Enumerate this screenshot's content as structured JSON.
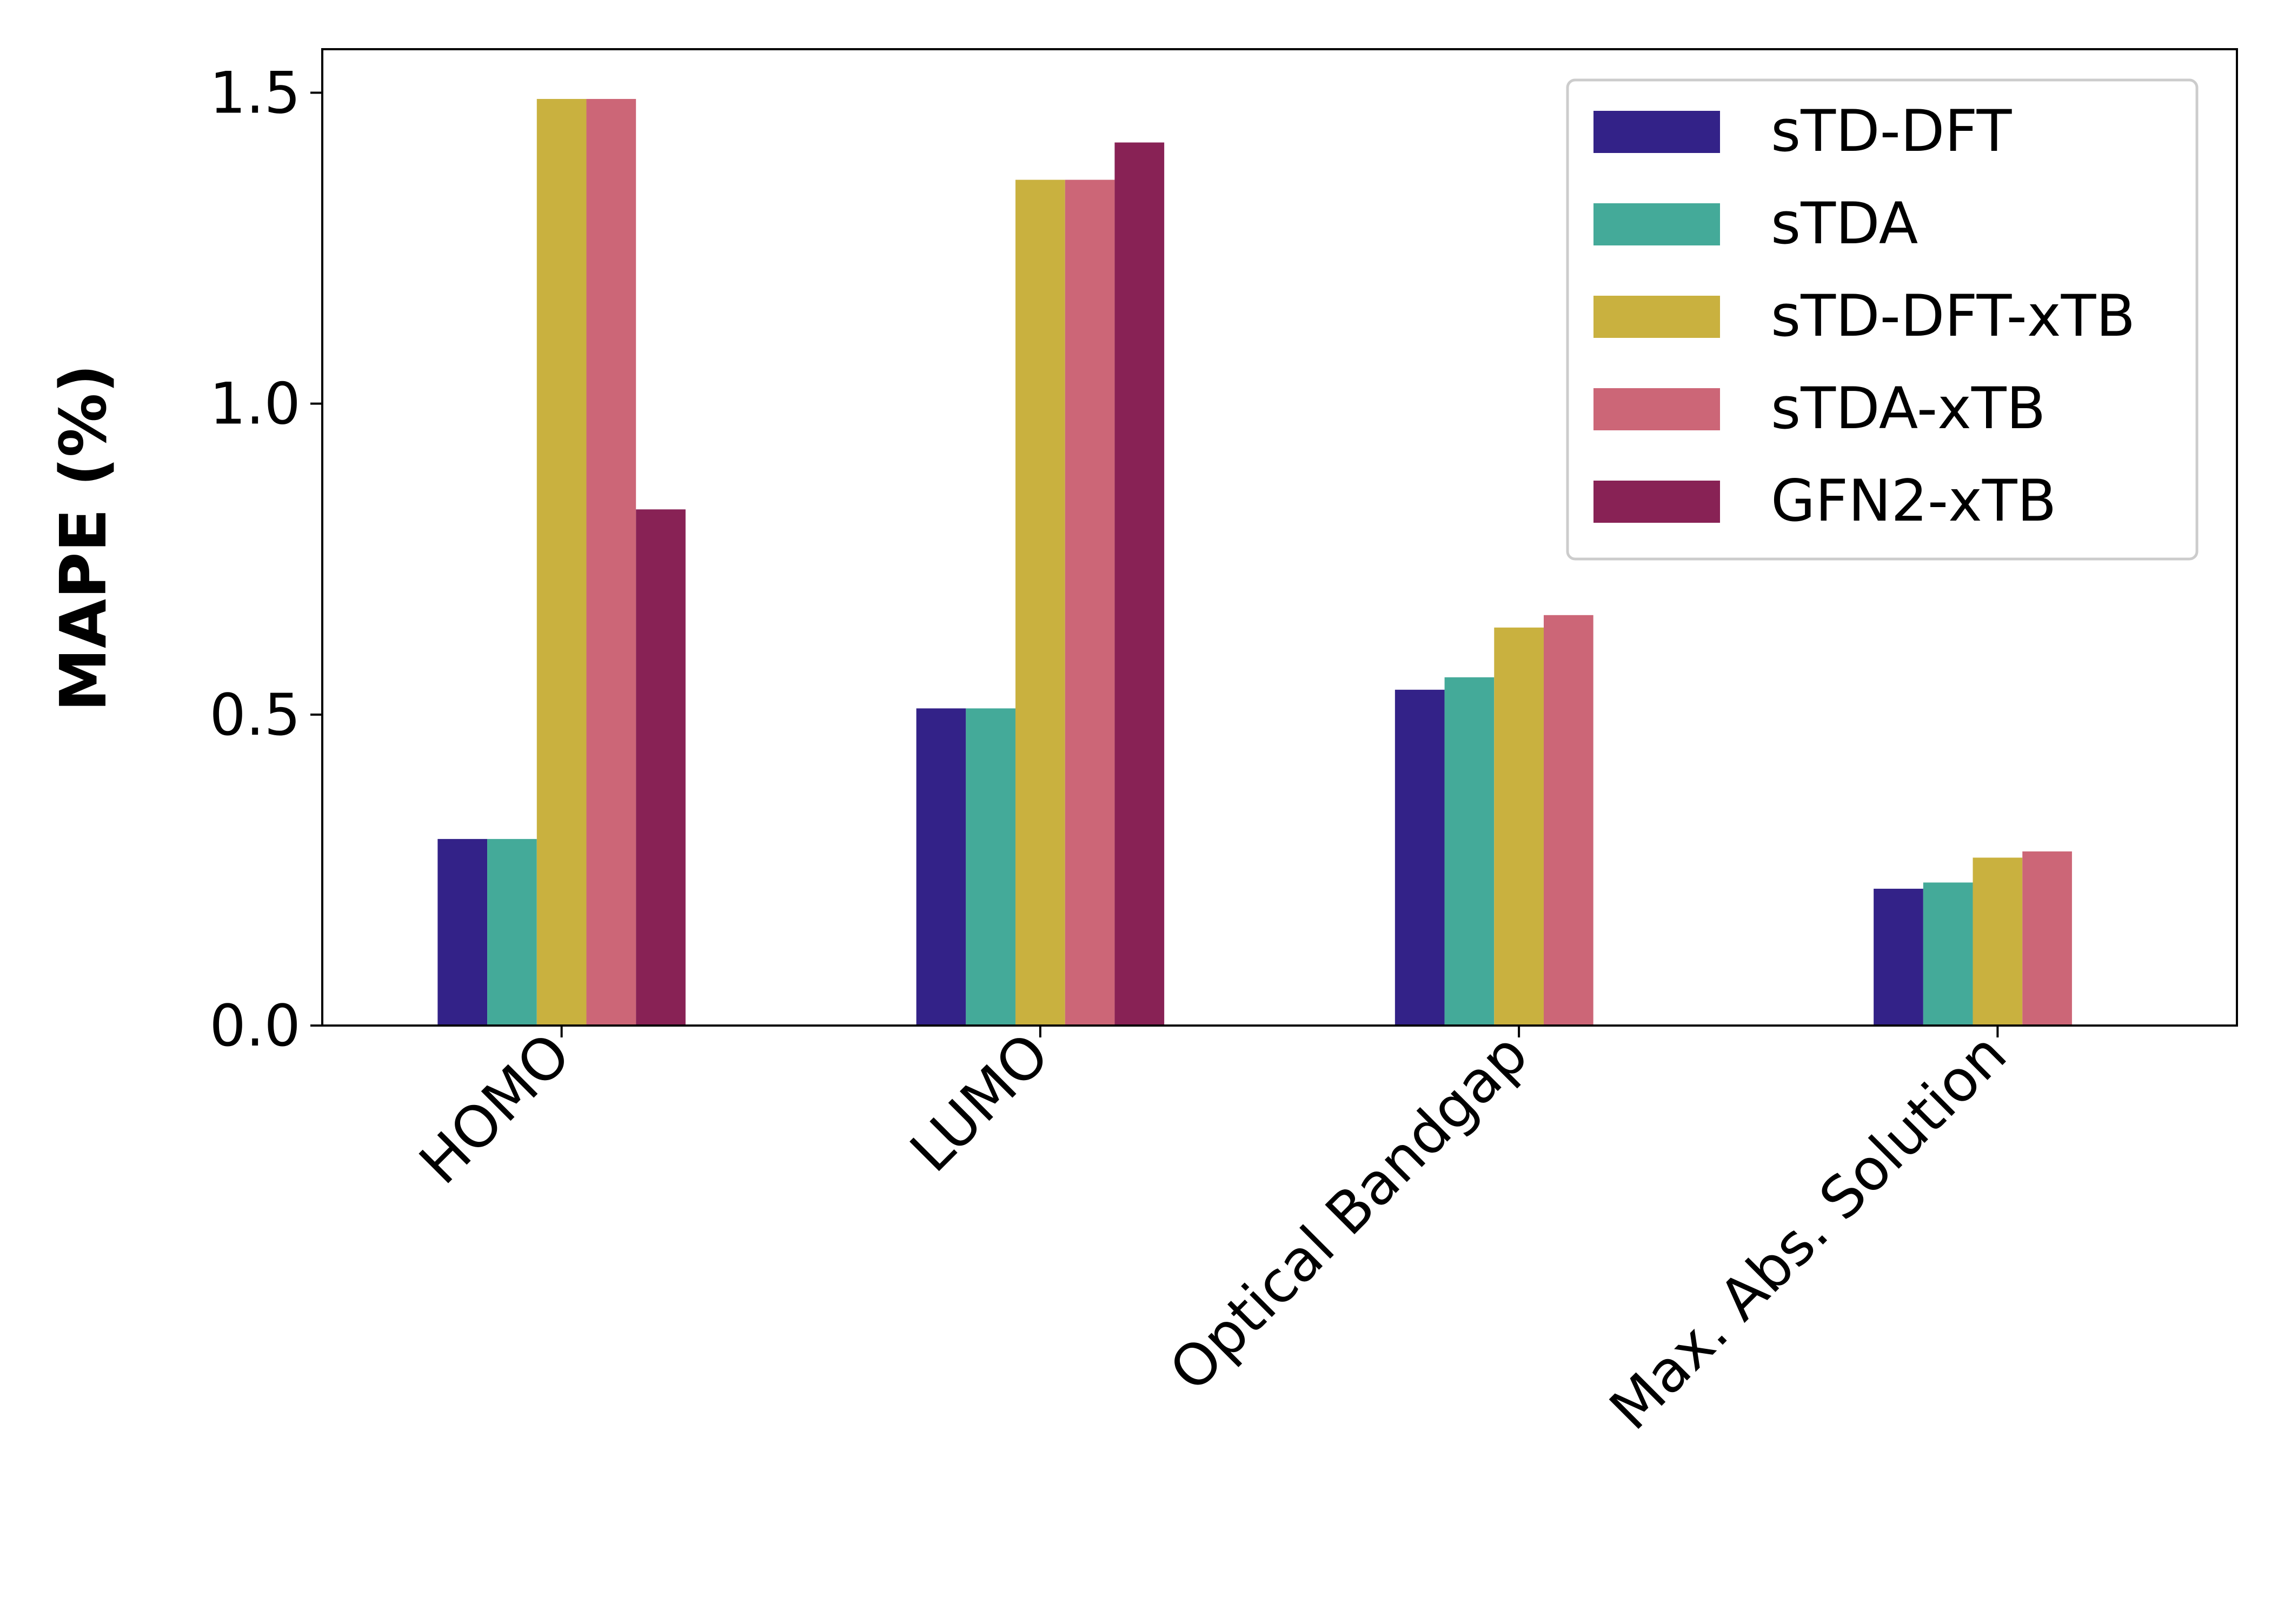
{
  "chart_data": {
    "type": "bar",
    "title": "",
    "xlabel": "",
    "ylabel": "MAPE (%)",
    "categories": [
      "HOMO",
      "LUMO",
      "Optical Bandgap",
      "Max. Abs. Solution"
    ],
    "series": [
      {
        "name": "sTD-DFT",
        "color": "#332288",
        "values": [
          0.3,
          0.51,
          0.54,
          0.22
        ]
      },
      {
        "name": "sTDA",
        "color": "#44AA99",
        "values": [
          0.3,
          0.51,
          0.56,
          0.23
        ]
      },
      {
        "name": "sTD-DFT-xTB",
        "color": "#C9B13F",
        "values": [
          1.49,
          1.36,
          0.64,
          0.27
        ]
      },
      {
        "name": "sTDA-xTB",
        "color": "#CC6677",
        "values": [
          1.49,
          1.36,
          0.66,
          0.28
        ]
      },
      {
        "name": "GFN2-xTB",
        "color": "#882255",
        "values": [
          0.83,
          1.42,
          null,
          null
        ]
      }
    ],
    "ylim": [
      0,
      1.57
    ],
    "yticks": [
      0.0,
      0.5,
      1.0,
      1.5
    ],
    "ytick_labels": [
      "0.0",
      "0.5",
      "1.0",
      "1.5"
    ],
    "grid": false,
    "legend_position": "top-right"
  }
}
